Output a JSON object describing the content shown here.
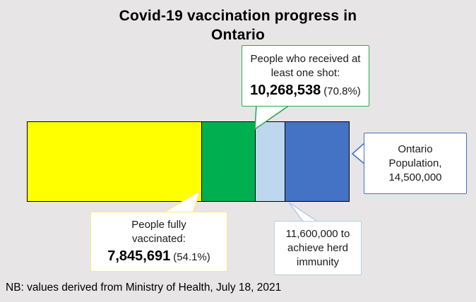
{
  "title": {
    "line1": "Covid-19 vaccination progress in",
    "line2": "Ontario"
  },
  "note": {
    "text": "NB: values derived from Ministry of Health, July 18, 2021"
  },
  "callouts": {
    "one_shot": {
      "line1": "People who received at",
      "line2": "least one shot:",
      "value": "10,268,538",
      "percent": "(70.8%)",
      "border_color": "#2fa94f"
    },
    "population": {
      "line1": "Ontario",
      "line2": "Population,",
      "line3": "14,500,000",
      "border_color": "#4472c4"
    },
    "fully_vaccinated": {
      "line1": "People fully",
      "line2": "vaccinated:",
      "value": "7,845,691",
      "percent": "(54.1%)",
      "border_color": "#ffe880"
    },
    "herd_immunity": {
      "line1": "11,600,000 to",
      "line2": "achieve herd",
      "line3": "immunity",
      "border_color": "#b8cee4"
    }
  },
  "chart_data": {
    "type": "bar",
    "orientation": "horizontal-stacked",
    "title": "Covid-19 vaccination progress in Ontario",
    "total": 14500000,
    "xlim": [
      0,
      14500000
    ],
    "grid": false,
    "legend": "none",
    "segments": [
      {
        "label": "People fully vaccinated",
        "value": 7845691,
        "cumulative": 7845691,
        "percent_of_total": "54.1%",
        "color": "#ffff00"
      },
      {
        "label": "Additional people who received at least one shot",
        "value": 2422847,
        "cumulative": 10268538,
        "percent_of_total_cumulative": "70.8%",
        "color": "#00b050"
      },
      {
        "label": "Additional needed to reach herd immunity",
        "value": 1331462,
        "cumulative": 11600000,
        "color": "#bdd7ee"
      },
      {
        "label": "Remaining Ontario population",
        "value": 2900000,
        "cumulative": 14500000,
        "color": "#4472c4"
      }
    ],
    "annotations": [
      {
        "target": "cumulative 10,268,538 boundary",
        "text": "People who received at least one shot: 10,268,538 (70.8%)"
      },
      {
        "target": "cumulative 7,845,691 boundary",
        "text": "People fully vaccinated: 7,845,691 (54.1%)"
      },
      {
        "target": "cumulative 11,600,000 boundary",
        "text": "11,600,000 to achieve herd immunity"
      },
      {
        "target": "bar end 14,500,000",
        "text": "Ontario Population, 14,500,000"
      }
    ],
    "source_note": "NB: values derived from Ministry of Health, July 18, 2021"
  }
}
